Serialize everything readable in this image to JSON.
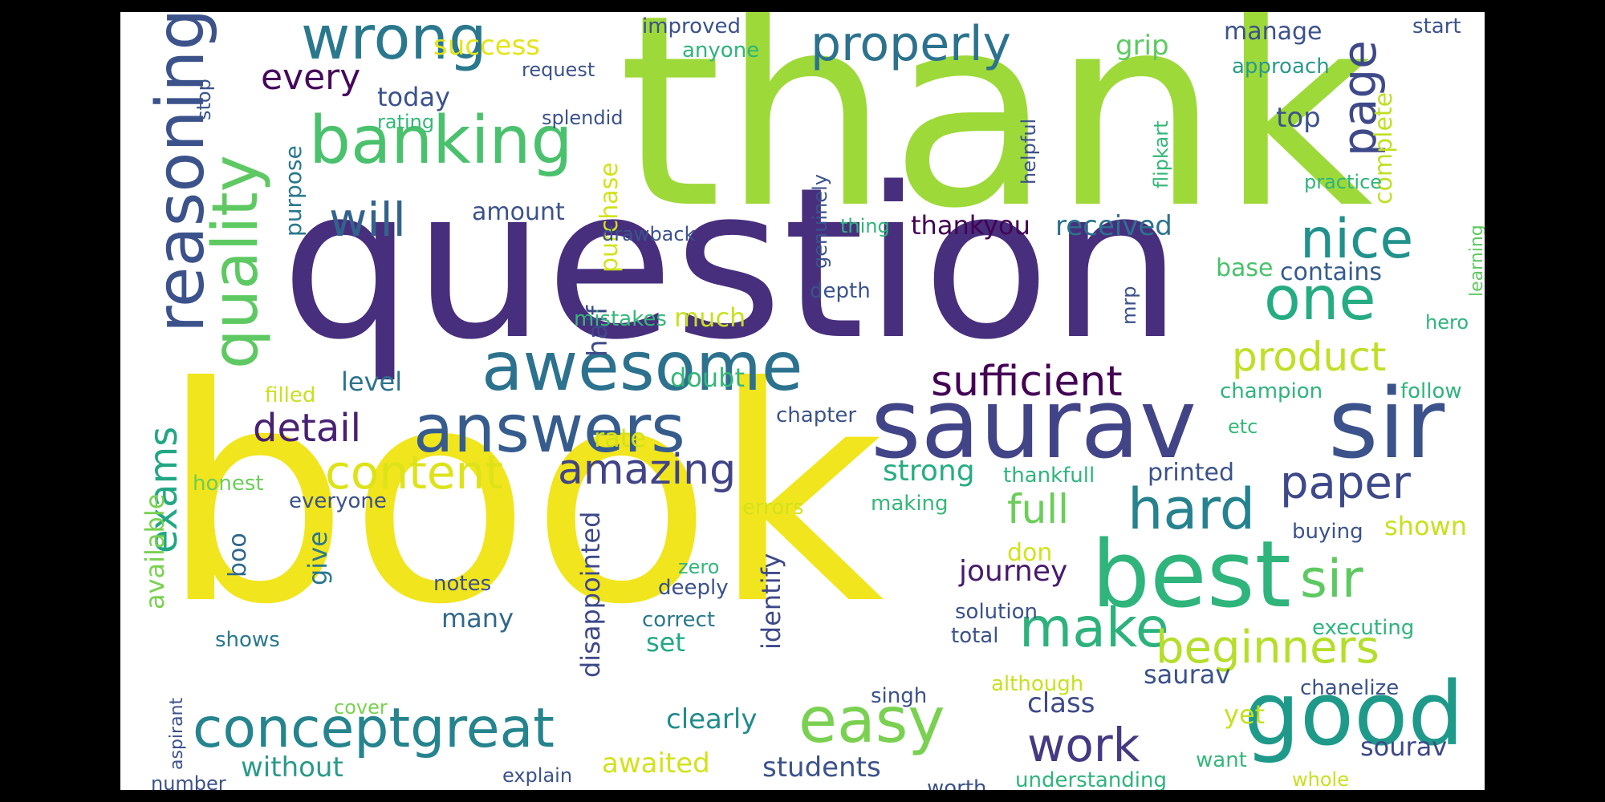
{
  "words": [
    {
      "text": "thank",
      "color": "#9ed93a"
    },
    {
      "text": "question",
      "color": "#472f7d"
    },
    {
      "text": "book",
      "color": "#f1e51d"
    },
    {
      "text": "saurav",
      "color": "#414487"
    },
    {
      "text": "sir",
      "color": "#3b528b"
    },
    {
      "text": "best",
      "color": "#2fb47c"
    },
    {
      "text": "good",
      "color": "#1f9a8a"
    },
    {
      "text": "reasoning",
      "color": "#3b528b"
    },
    {
      "text": "quality",
      "color": "#5ec962"
    },
    {
      "text": "banking",
      "color": "#4ac16d"
    },
    {
      "text": "wrong",
      "color": "#2a788e"
    },
    {
      "text": "page",
      "color": "#3e4989"
    },
    {
      "text": "properly",
      "color": "#2c728e"
    },
    {
      "text": "awesome",
      "color": "#2c728e"
    },
    {
      "text": "answers",
      "color": "#365c8d"
    },
    {
      "text": "nice",
      "color": "#21918c"
    },
    {
      "text": "one",
      "color": "#25ac82"
    },
    {
      "text": "content",
      "color": "#dde318"
    },
    {
      "text": "amazing",
      "color": "#414487"
    },
    {
      "text": "conceptgreat",
      "color": "#25848e"
    },
    {
      "text": "easy",
      "color": "#7ad151"
    },
    {
      "text": "make",
      "color": "#2db27d"
    },
    {
      "text": "beginners",
      "color": "#b5de2b"
    },
    {
      "text": "hard",
      "color": "#26828e"
    },
    {
      "text": "paper",
      "color": "#3e4989"
    },
    {
      "text": "sir",
      "color": "#5ec962"
    },
    {
      "text": "work",
      "color": "#443a83"
    },
    {
      "text": "exams",
      "color": "#22a785"
    },
    {
      "text": "sufficient",
      "color": "#440154"
    },
    {
      "text": "product",
      "color": "#c0df25"
    },
    {
      "text": "every",
      "color": "#46085c"
    },
    {
      "text": "will",
      "color": "#33638d"
    },
    {
      "text": "detail",
      "color": "#482173"
    },
    {
      "text": "full",
      "color": "#6ccd5a"
    },
    {
      "text": "success",
      "color": "#e5e419"
    },
    {
      "text": "today",
      "color": "#3b528b"
    },
    {
      "text": "grip",
      "color": "#5ec962"
    },
    {
      "text": "manage",
      "color": "#3b528b"
    },
    {
      "text": "approach",
      "color": "#2a9a8a"
    },
    {
      "text": "top",
      "color": "#3b528b"
    },
    {
      "text": "complete",
      "color": "#c0df25"
    },
    {
      "text": "purpose",
      "color": "#2a788e"
    },
    {
      "text": "purchase",
      "color": "#d2e21b"
    },
    {
      "text": "amount",
      "color": "#3b528b"
    },
    {
      "text": "received",
      "color": "#2c728e"
    },
    {
      "text": "thankyou",
      "color": "#440154"
    },
    {
      "text": "contains",
      "color": "#365c8d"
    },
    {
      "text": "base",
      "color": "#4ac16d"
    },
    {
      "text": "half",
      "color": "#3e4989"
    },
    {
      "text": "much",
      "color": "#c8e020"
    },
    {
      "text": "level",
      "color": "#2c728e"
    },
    {
      "text": "doubt",
      "color": "#35b779"
    },
    {
      "text": "rate",
      "color": "#d2e21b"
    },
    {
      "text": "strong",
      "color": "#27ad81"
    },
    {
      "text": "printed",
      "color": "#3b528b"
    },
    {
      "text": "shown",
      "color": "#c8e020"
    },
    {
      "text": "journey",
      "color": "#481b6d"
    },
    {
      "text": "don",
      "color": "#d2e21b"
    },
    {
      "text": "identify",
      "color": "#3e4989"
    },
    {
      "text": "disappointed",
      "color": "#3e4989"
    },
    {
      "text": "give",
      "color": "#2a788e"
    },
    {
      "text": "boo",
      "color": "#30678d"
    },
    {
      "text": "available",
      "color": "#7ad151"
    },
    {
      "text": "many",
      "color": "#31688e"
    },
    {
      "text": "set",
      "color": "#22a884"
    },
    {
      "text": "clearly",
      "color": "#228c8d"
    },
    {
      "text": "yet",
      "color": "#c8e020"
    },
    {
      "text": "class",
      "color": "#3e4989"
    },
    {
      "text": "saurav",
      "color": "#3b528b"
    },
    {
      "text": "without",
      "color": "#2a9a8a"
    },
    {
      "text": "awaited",
      "color": "#d2e21b"
    },
    {
      "text": "students",
      "color": "#3b528b"
    },
    {
      "text": "sourav",
      "color": "#3e4989"
    },
    {
      "text": "improved",
      "color": "#3b528b"
    },
    {
      "text": "anyone",
      "color": "#2fb47c"
    },
    {
      "text": "request",
      "color": "#3b528b"
    },
    {
      "text": "start",
      "color": "#3b528b"
    },
    {
      "text": "stop",
      "color": "#3b528b"
    },
    {
      "text": "rating",
      "color": "#35b779"
    },
    {
      "text": "splendid",
      "color": "#3b528b"
    },
    {
      "text": "drawback",
      "color": "#3b528b"
    },
    {
      "text": "genuinely",
      "color": "#3b528b"
    },
    {
      "text": "thing",
      "color": "#2fb47c"
    },
    {
      "text": "helpful",
      "color": "#3b528b"
    },
    {
      "text": "flipkart",
      "color": "#35b779"
    },
    {
      "text": "practice",
      "color": "#2fb47c"
    },
    {
      "text": "learning",
      "color": "#5ec962"
    },
    {
      "text": "hero",
      "color": "#2fb47c"
    },
    {
      "text": "depth",
      "color": "#3b528b"
    },
    {
      "text": "mistakes",
      "color": "#35b779"
    },
    {
      "text": "mrp",
      "color": "#3b528b"
    },
    {
      "text": "filled",
      "color": "#c8e020"
    },
    {
      "text": "champion",
      "color": "#2fb47c"
    },
    {
      "text": "follow",
      "color": "#2fb47c"
    },
    {
      "text": "chapter",
      "color": "#3b528b"
    },
    {
      "text": "etc",
      "color": "#35b779"
    },
    {
      "text": "honest",
      "color": "#6ccd5a"
    },
    {
      "text": "thankfull",
      "color": "#2fb47c"
    },
    {
      "text": "everyone",
      "color": "#3b528b"
    },
    {
      "text": "errors",
      "color": "#d2e21b"
    },
    {
      "text": "making",
      "color": "#35b779"
    },
    {
      "text": "buying",
      "color": "#3b528b"
    },
    {
      "text": "zero",
      "color": "#35b779"
    },
    {
      "text": "notes",
      "color": "#3b528b"
    },
    {
      "text": "deeply",
      "color": "#3b528b"
    },
    {
      "text": "solution",
      "color": "#3b528b"
    },
    {
      "text": "correct",
      "color": "#2a788e"
    },
    {
      "text": "executing",
      "color": "#2fb47c"
    },
    {
      "text": "total",
      "color": "#3b528b"
    },
    {
      "text": "shows",
      "color": "#2a788e"
    },
    {
      "text": "although",
      "color": "#c8e020"
    },
    {
      "text": "chanelize",
      "color": "#3b528b"
    },
    {
      "text": "singh",
      "color": "#3b528b"
    },
    {
      "text": "cover",
      "color": "#7ad151"
    },
    {
      "text": "aspirant",
      "color": "#3b528b"
    },
    {
      "text": "want",
      "color": "#35b779"
    },
    {
      "text": "number",
      "color": "#3b528b"
    },
    {
      "text": "explain",
      "color": "#3b528b"
    },
    {
      "text": "worth",
      "color": "#3b528b"
    },
    {
      "text": "understanding",
      "color": "#2fb47c"
    },
    {
      "text": "whole",
      "color": "#c8e020"
    }
  ]
}
